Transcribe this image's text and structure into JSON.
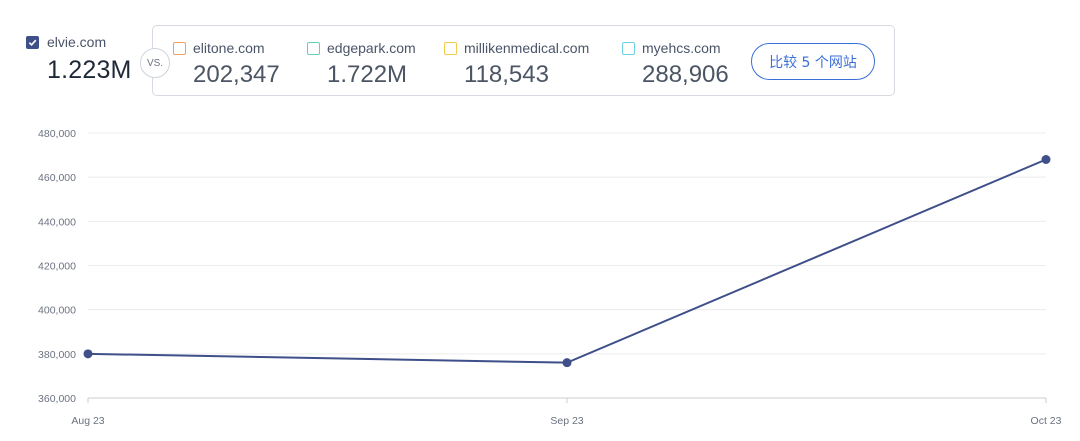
{
  "primary": {
    "domain": "elvie.com",
    "value": "1.223M",
    "checked": true,
    "color": "#3f4f8a"
  },
  "vs_label": "VS.",
  "competitors": [
    {
      "domain": "elitone.com",
      "value": "202,347",
      "color": "#f0a066"
    },
    {
      "domain": "edgepark.com",
      "value": "1.722M",
      "color": "#5fd3b8"
    },
    {
      "domain": "millikenmedical.com",
      "value": "118,543",
      "color": "#f3c94a"
    },
    {
      "domain": "myehcs.com",
      "value": "288,906",
      "color": "#6fd0e6"
    }
  ],
  "compare_button": "比较 5 个网站",
  "chart_data": {
    "type": "line",
    "categories": [
      "Aug 23",
      "Sep 23",
      "Oct 23"
    ],
    "series": [
      {
        "name": "elvie.com",
        "values": [
          380000,
          376000,
          468000
        ],
        "color": "#3f4f8a"
      }
    ],
    "y_ticks": [
      "360,000",
      "380,000",
      "400,000",
      "420,000",
      "440,000",
      "460,000",
      "480,000"
    ],
    "ylim": [
      360000,
      480000
    ],
    "grid": true
  }
}
